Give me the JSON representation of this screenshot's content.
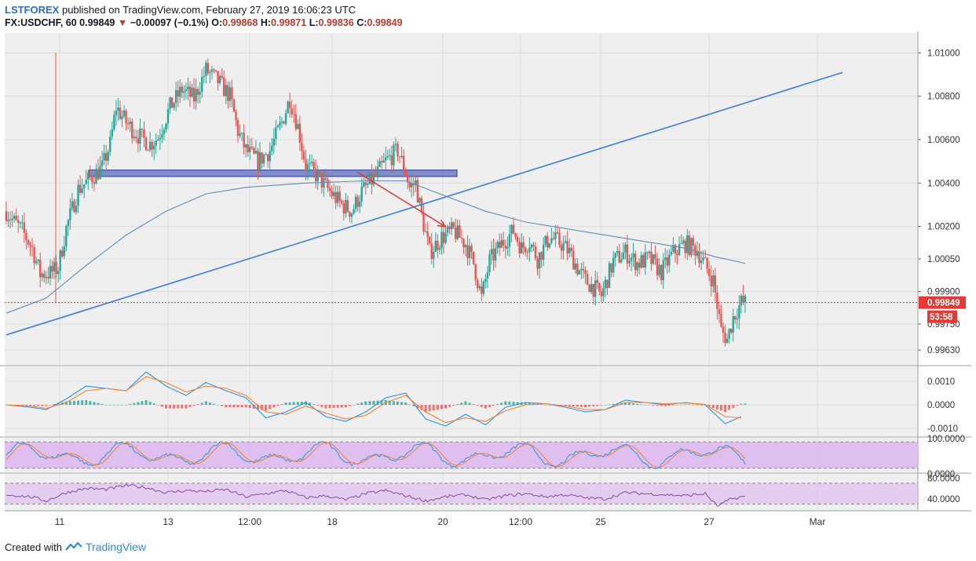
{
  "header": {
    "publisher": "LSTFOREX",
    "published_text": "published on TradingView.com, February 27, 2019 16:06:23 UTC",
    "symbol": "FX:USDCHF, 60",
    "last": "0.99849",
    "arrow": "▼",
    "change": "−0.00097 (−0.1%)",
    "o_label": "O:",
    "o": "0.99868",
    "h_label": "H:",
    "h": "0.99871",
    "l_label": "L:",
    "l": "0.99836",
    "c_label": "C:",
    "c": "0.99849"
  },
  "footer": {
    "created_with": "Created with",
    "brand": "TradingView"
  },
  "colors": {
    "bull": "#26a69a",
    "bear": "#ef5350",
    "ma": "#5b8db8",
    "trendline": "#3d7de0",
    "zone": "#5c6bc0",
    "arrow": "#e53935",
    "price_line": "#e53935",
    "macd": "#2196f3",
    "signal": "#ff7f27",
    "stoch_k": "#2196f3",
    "stoch_d": "#ff7f27",
    "rsi": "#8e44ad",
    "band": "#d9b3f0",
    "grid": "#dcdcdc",
    "panel_bg": "#efefef"
  },
  "chart_data": {
    "type": "candlestick",
    "symbol": "FX:USDCHF",
    "timeframe": "60",
    "x_tick_labels": [
      "11",
      "13",
      "12:00",
      "18",
      "20",
      "12:00",
      "25",
      "27",
      "Mar"
    ],
    "y_tick_labels": [
      "1.01000",
      "1.00800",
      "1.00600",
      "1.00400",
      "1.00200",
      "1.00050",
      "0.99900",
      "0.99750",
      "0.99630"
    ],
    "ylim": [
      0.9958,
      1.0107
    ],
    "last_price": "0.99849",
    "countdown": "53:58",
    "close_path": [
      [
        0,
        1.0027
      ],
      [
        4,
        1.0022
      ],
      [
        8,
        1.0018
      ],
      [
        13,
        1.001
      ],
      [
        17,
        0.9998
      ],
      [
        22,
        0.99985
      ],
      [
        26,
        1.0001
      ],
      [
        30,
        1.0019
      ],
      [
        36,
        1.0037
      ],
      [
        42,
        1.0042
      ],
      [
        48,
        1.0047
      ],
      [
        52,
        1.0058
      ],
      [
        55,
        1.0075
      ],
      [
        60,
        1.0068
      ],
      [
        66,
        1.0062
      ],
      [
        72,
        1.0058
      ],
      [
        76,
        1.0061
      ],
      [
        82,
        1.0075
      ],
      [
        88,
        1.0083
      ],
      [
        94,
        1.0079
      ],
      [
        100,
        1.0092
      ],
      [
        106,
        1.0087
      ],
      [
        112,
        1.008
      ],
      [
        116,
        1.0064
      ],
      [
        120,
        1.0055
      ],
      [
        126,
        1.005
      ],
      [
        132,
        1.0055
      ],
      [
        138,
        1.0068
      ],
      [
        142,
        1.0079
      ],
      [
        146,
        1.0066
      ],
      [
        150,
        1.0048
      ],
      [
        156,
        1.0043
      ],
      [
        162,
        1.0036
      ],
      [
        168,
        1.003
      ],
      [
        173,
        1.0027
      ],
      [
        178,
        1.0036
      ],
      [
        184,
        1.0042
      ],
      [
        190,
        1.005
      ],
      [
        196,
        1.0055
      ],
      [
        200,
        1.0045
      ],
      [
        202,
        1.0038
      ],
      [
        205,
        1.004
      ],
      [
        208,
        1.0025
      ],
      [
        212,
        1.0008
      ],
      [
        218,
        1.0015
      ],
      [
        224,
        1.0018
      ],
      [
        230,
        1.0012
      ],
      [
        234,
        1.0003
      ],
      [
        238,
        0.9987
      ],
      [
        242,
        1.0004
      ],
      [
        248,
        1.0012
      ],
      [
        254,
        1.0018
      ],
      [
        258,
        1.001
      ],
      [
        262,
        1.0013
      ],
      [
        266,
        1.0005
      ],
      [
        272,
        1.0015
      ],
      [
        278,
        1.0012
      ],
      [
        282,
        1.0008
      ],
      [
        286,
        1.0001
      ],
      [
        290,
        0.9995
      ],
      [
        294,
        0.9992
      ],
      [
        298,
        0.9988
      ],
      [
        304,
        1.0004
      ],
      [
        310,
        1.0008
      ],
      [
        316,
        1.0003
      ],
      [
        322,
        1.0005
      ],
      [
        328,
        0.9999
      ],
      [
        334,
        1.0008
      ],
      [
        340,
        1.0012
      ],
      [
        346,
        1.0009
      ],
      [
        350,
        1.0002
      ],
      [
        354,
        0.9995
      ],
      [
        358,
        0.9972
      ],
      [
        361,
        0.9968
      ],
      [
        364,
        0.9978
      ],
      [
        368,
        0.99849
      ]
    ],
    "ma": {
      "name": "",
      "path": [
        [
          0,
          0.998
        ],
        [
          20,
          0.9987
        ],
        [
          40,
          1.0002
        ],
        [
          60,
          1.0016
        ],
        [
          80,
          1.0027
        ],
        [
          100,
          1.0035
        ],
        [
          120,
          1.0038
        ],
        [
          150,
          1.004
        ],
        [
          180,
          1.0041
        ],
        [
          200,
          1.0041
        ],
        [
          220,
          1.0034
        ],
        [
          240,
          1.0027
        ],
        [
          260,
          1.0022
        ],
        [
          280,
          1.0019
        ],
        [
          300,
          1.0016
        ],
        [
          320,
          1.0013
        ],
        [
          340,
          1.001
        ],
        [
          355,
          1.0006
        ],
        [
          370,
          1.0003
        ]
      ]
    },
    "drawings": {
      "trendline": {
        "from": [
          0,
          0.997
        ],
        "to": [
          352,
          1.0091
        ]
      },
      "support_zone": {
        "from_x": 42,
        "to_x": 226,
        "y_low": 1.0043,
        "y_high": 1.0046
      },
      "arrow": {
        "from": [
          170,
          1.0045
        ],
        "to": [
          204,
          1.002
        ]
      }
    },
    "macd": {
      "y_tick_labels": [
        "0.0010",
        "0.0000",
        "-0.0010"
      ],
      "ylim": [
        -0.0012,
        0.0015
      ],
      "macd_line": [
        [
          0,
          0.0
        ],
        [
          12,
          -0.0001
        ],
        [
          20,
          -0.0002
        ],
        [
          30,
          0.00025
        ],
        [
          40,
          0.0008
        ],
        [
          50,
          0.0007
        ],
        [
          60,
          0.0006
        ],
        [
          70,
          0.0014
        ],
        [
          80,
          0.0008
        ],
        [
          90,
          0.0004
        ],
        [
          100,
          0.00095
        ],
        [
          110,
          0.0006
        ],
        [
          120,
          0.0003
        ],
        [
          130,
          -0.00055
        ],
        [
          140,
          -0.0003
        ],
        [
          150,
          0.0001
        ],
        [
          160,
          -0.0005
        ],
        [
          170,
          -0.0007
        ],
        [
          180,
          -0.0003
        ],
        [
          190,
          0.0003
        ],
        [
          200,
          0.0005
        ],
        [
          210,
          -0.0006
        ],
        [
          220,
          -0.0009
        ],
        [
          230,
          -0.0004
        ],
        [
          240,
          -0.00085
        ],
        [
          250,
          -0.0001
        ],
        [
          260,
          0.0001
        ],
        [
          270,
          5e-05
        ],
        [
          280,
          -0.0001
        ],
        [
          290,
          -0.0003
        ],
        [
          300,
          -0.0002
        ],
        [
          310,
          0.0002
        ],
        [
          320,
          0.0001
        ],
        [
          330,
          0.0
        ],
        [
          340,
          0.0001
        ],
        [
          350,
          0.0
        ],
        [
          360,
          -0.0008
        ],
        [
          368,
          -0.0005
        ]
      ],
      "signal_line": [
        [
          0,
          0.0
        ],
        [
          12,
          -5e-05
        ],
        [
          20,
          -0.00015
        ],
        [
          30,
          0.0001
        ],
        [
          40,
          0.0006
        ],
        [
          50,
          0.0007
        ],
        [
          60,
          0.0006
        ],
        [
          70,
          0.0012
        ],
        [
          80,
          0.00095
        ],
        [
          90,
          0.00055
        ],
        [
          100,
          0.0008
        ],
        [
          110,
          0.0007
        ],
        [
          120,
          0.0004
        ],
        [
          130,
          -0.0003
        ],
        [
          140,
          -0.0004
        ],
        [
          150,
          -5e-05
        ],
        [
          160,
          -0.00035
        ],
        [
          170,
          -0.0006
        ],
        [
          180,
          -0.00045
        ],
        [
          190,
          0.0001
        ],
        [
          200,
          0.0004
        ],
        [
          210,
          -0.0003
        ],
        [
          220,
          -0.00075
        ],
        [
          230,
          -0.00055
        ],
        [
          240,
          -0.0007
        ],
        [
          250,
          -0.00025
        ],
        [
          260,
          0.0
        ],
        [
          270,
          5e-05
        ],
        [
          280,
          -5e-05
        ],
        [
          290,
          -0.0002
        ],
        [
          300,
          -0.0002
        ],
        [
          310,
          0.0001
        ],
        [
          320,
          0.0001
        ],
        [
          330,
          5e-05
        ],
        [
          340,
          8e-05
        ],
        [
          350,
          2e-05
        ],
        [
          360,
          -0.0005
        ],
        [
          368,
          -0.00055
        ]
      ]
    },
    "stochastic": {
      "y_tick_labels": [
        "100.0000",
        "0.0000"
      ],
      "ylim": [
        0,
        100
      ],
      "upper": 80,
      "lower": 20
    },
    "rsi": {
      "y_tick_labels": [
        "80.0000",
        "40.0000"
      ],
      "ylim": [
        20,
        85
      ],
      "upper": 70,
      "lower": 30,
      "path": [
        [
          0,
          48
        ],
        [
          12,
          44
        ],
        [
          20,
          36
        ],
        [
          30,
          52
        ],
        [
          40,
          60
        ],
        [
          50,
          58
        ],
        [
          60,
          66
        ],
        [
          70,
          62
        ],
        [
          80,
          52
        ],
        [
          90,
          56
        ],
        [
          100,
          54
        ],
        [
          110,
          58
        ],
        [
          120,
          44
        ],
        [
          130,
          50
        ],
        [
          140,
          56
        ],
        [
          150,
          42
        ],
        [
          160,
          46
        ],
        [
          170,
          38
        ],
        [
          180,
          50
        ],
        [
          190,
          56
        ],
        [
          200,
          46
        ],
        [
          210,
          36
        ],
        [
          220,
          44
        ],
        [
          230,
          48
        ],
        [
          240,
          38
        ],
        [
          250,
          46
        ],
        [
          260,
          50
        ],
        [
          270,
          44
        ],
        [
          280,
          48
        ],
        [
          290,
          42
        ],
        [
          300,
          40
        ],
        [
          310,
          52
        ],
        [
          320,
          50
        ],
        [
          330,
          48
        ],
        [
          340,
          46
        ],
        [
          350,
          50
        ],
        [
          356,
          26
        ],
        [
          362,
          38
        ],
        [
          368,
          44
        ]
      ]
    }
  }
}
